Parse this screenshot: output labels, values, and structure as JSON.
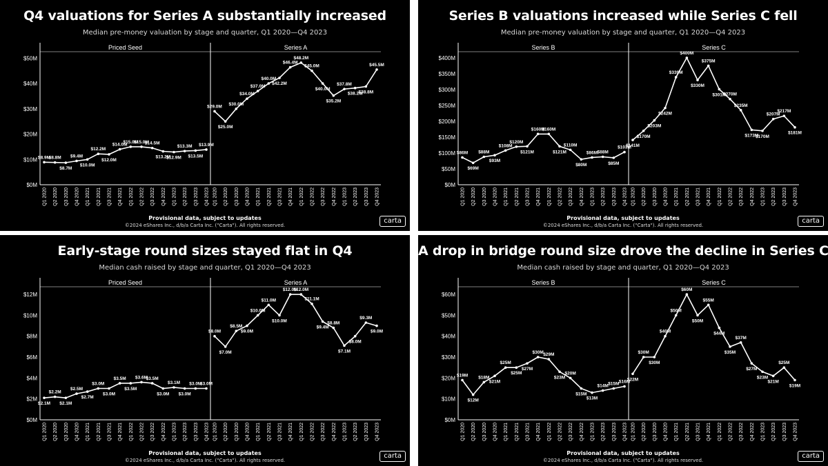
{
  "footer": {
    "provisional": "Provisional data, subject to updates",
    "copyright": "©2024 eShares Inc., d/b/a Carta Inc. (\"Carta\"). All rights reserved.",
    "logo": "carta"
  },
  "chart_data": [
    {
      "type": "line",
      "title": "Q4 valuations for Series A substantially increased",
      "subtitle": "Median pre-money valuation by stage and quarter, Q1 2020—Q4 2023",
      "yticks": [
        "$0M",
        "$10M",
        "$20M",
        "$30M",
        "$40M",
        "$50M"
      ],
      "ylim": [
        0,
        52
      ],
      "grid": false,
      "facets": [
        {
          "name": "Priced Seed",
          "categories": [
            "Q1 2020",
            "Q2 2020",
            "Q3 2020",
            "Q4 2020",
            "Q1 2021",
            "Q2 2021",
            "Q3 2021",
            "Q4 2021",
            "Q1 2022",
            "Q2 2022",
            "Q3 2022",
            "Q4 2022",
            "Q1 2023",
            "Q2 2023",
            "Q3 2023",
            "Q4 2023"
          ],
          "values": [
            8.9,
            8.8,
            8.7,
            9.4,
            10.0,
            12.2,
            12.0,
            14.0,
            15.0,
            15.0,
            14.5,
            13.2,
            12.9,
            13.3,
            13.5,
            13.9
          ],
          "labels": [
            "$8.9M",
            "$8.8M",
            "$8.7M",
            "$9.4M",
            "$10.0M",
            "$12.2M",
            "$12.0M",
            "$14.0M",
            "$15.0M",
            "$15.0M",
            "$14.5M",
            "$13.2M",
            "$12.9M",
            "$13.3M",
            "$13.5M",
            "$13.9M"
          ]
        },
        {
          "name": "Series A",
          "categories": [
            "Q1 2020",
            "Q2 2020",
            "Q3 2020",
            "Q4 2020",
            "Q1 2021",
            "Q2 2021",
            "Q3 2021",
            "Q4 2021",
            "Q1 2022",
            "Q2 2022",
            "Q3 2022",
            "Q4 2022",
            "Q1 2023",
            "Q2 2023",
            "Q3 2023",
            "Q4 2023"
          ],
          "values": [
            29.0,
            25.0,
            30.0,
            34.0,
            37.0,
            40.0,
            42.2,
            46.4,
            48.2,
            45.0,
            40.0,
            35.2,
            37.8,
            38.2,
            38.8,
            45.5
          ],
          "labels": [
            "$29.0M",
            "$25.0M",
            "$30.0M",
            "$34.0M",
            "$37.0M",
            "$40.0M",
            "$42.2M",
            "$46.4M",
            "$48.2M",
            "$45.0M",
            "$40.0M",
            "$35.2M",
            "$37.8M",
            "$38.2M",
            "$38.8M",
            "$45.5M"
          ]
        }
      ]
    },
    {
      "type": "line",
      "title": "Series B valuations increased while Series C fell",
      "subtitle": "Median pre-money valuation by stage and quarter, Q1 2020—Q4 2023",
      "yticks": [
        "$0M",
        "$50M",
        "$100M",
        "$150M",
        "$200M",
        "$250M",
        "$300M",
        "$350M",
        "$400M"
      ],
      "ylim": [
        0,
        415
      ],
      "grid": false,
      "facets": [
        {
          "name": "Series B",
          "categories": [
            "Q1 2020",
            "Q2 2020",
            "Q3 2020",
            "Q4 2020",
            "Q1 2021",
            "Q2 2021",
            "Q3 2021",
            "Q4 2021",
            "Q1 2022",
            "Q2 2022",
            "Q3 2022",
            "Q4 2022",
            "Q1 2023",
            "Q2 2023",
            "Q3 2023",
            "Q4 2023"
          ],
          "values": [
            86,
            69,
            88,
            93,
            108,
            120,
            121,
            160,
            160,
            121,
            110,
            80,
            86,
            88,
            85,
            103
          ],
          "labels": [
            "$86M",
            "$69M",
            "$88M",
            "$93M",
            "$108M",
            "$120M",
            "$121M",
            "$160M",
            "$160M",
            "$121M",
            "$110M",
            "$80M",
            "$86M",
            "$88M",
            "$85M",
            "$103M"
          ]
        },
        {
          "name": "Series C",
          "categories": [
            "Q1 2020",
            "Q2 2020",
            "Q3 2020",
            "Q4 2020",
            "Q1 2021",
            "Q2 2021",
            "Q3 2021",
            "Q4 2021",
            "Q1 2022",
            "Q2 2022",
            "Q3 2022",
            "Q4 2022",
            "Q1 2023",
            "Q2 2023",
            "Q3 2023",
            "Q4 2023"
          ],
          "values": [
            141,
            170,
            203,
            242,
            339,
            400,
            330,
            375,
            301,
            270,
            235,
            173,
            170,
            207,
            217,
            181
          ],
          "labels": [
            "$141M",
            "$170M",
            "$203M",
            "$242M",
            "$339M",
            "$400M",
            "$330M",
            "$375M",
            "$301M",
            "$270M",
            "$235M",
            "$173M",
            "$170M",
            "$207M",
            "$217M",
            "$181M"
          ]
        }
      ]
    },
    {
      "type": "line",
      "title": "Early-stage round sizes stayed flat in Q4",
      "subtitle": "Median cash raised by stage and quarter, Q1 2020—Q4 2023",
      "yticks": [
        "$0M",
        "$2M",
        "$4M",
        "$6M",
        "$8M",
        "$10M",
        "$12M"
      ],
      "ylim": [
        0,
        12.6
      ],
      "grid": false,
      "facets": [
        {
          "name": "Priced Seed",
          "categories": [
            "Q1 2020",
            "Q2 2020",
            "Q3 2020",
            "Q4 2020",
            "Q1 2021",
            "Q2 2021",
            "Q3 2021",
            "Q4 2021",
            "Q1 2022",
            "Q2 2022",
            "Q3 2022",
            "Q4 2022",
            "Q1 2023",
            "Q2 2023",
            "Q3 2023",
            "Q4 2023"
          ],
          "values": [
            2.1,
            2.2,
            2.1,
            2.5,
            2.7,
            3.0,
            3.0,
            3.5,
            3.5,
            3.6,
            3.5,
            3.0,
            3.1,
            3.0,
            3.0,
            3.0
          ],
          "labels": [
            "$2.1M",
            "$2.2M",
            "$2.1M",
            "$2.5M",
            "$2.7M",
            "$3.0M",
            "$3.0M",
            "$3.5M",
            "$3.5M",
            "$3.6M",
            "$3.5M",
            "$3.0M",
            "$3.1M",
            "$3.0M",
            "$3.0M",
            "$3.0M"
          ]
        },
        {
          "name": "Series A",
          "categories": [
            "Q1 2020",
            "Q2 2020",
            "Q3 2020",
            "Q4 2020",
            "Q1 2021",
            "Q2 2021",
            "Q3 2021",
            "Q4 2021",
            "Q1 2022",
            "Q2 2022",
            "Q3 2022",
            "Q4 2022",
            "Q1 2023",
            "Q2 2023",
            "Q3 2023",
            "Q4 2023"
          ],
          "values": [
            8.0,
            7.0,
            8.5,
            9.0,
            10.0,
            11.0,
            10.0,
            12.0,
            12.0,
            11.1,
            9.4,
            8.8,
            7.1,
            8.0,
            9.3,
            9.0
          ],
          "labels": [
            "$8.0M",
            "$7.0M",
            "$8.5M",
            "$9.0M",
            "$10.0M",
            "$11.0M",
            "$10.0M",
            "$12.0M",
            "$12.0M",
            "$11.1M",
            "$9.4M",
            "$8.8M",
            "$7.1M",
            "$8.0M",
            "$9.3M",
            "$9.0M"
          ]
        }
      ]
    },
    {
      "type": "line",
      "title": "A drop in bridge round size drove the decline in Series C",
      "subtitle": "Median cash raised by stage and quarter, Q1 2020—Q4 2023",
      "yticks": [
        "$0M",
        "$10M",
        "$20M",
        "$30M",
        "$40M",
        "$50M",
        "$60M"
      ],
      "ylim": [
        0,
        63
      ],
      "grid": false,
      "facets": [
        {
          "name": "Series B",
          "categories": [
            "Q1 2020",
            "Q2 2020",
            "Q3 2020",
            "Q4 2020",
            "Q1 2021",
            "Q2 2021",
            "Q3 2021",
            "Q4 2021",
            "Q1 2022",
            "Q2 2022",
            "Q3 2022",
            "Q4 2022",
            "Q1 2023",
            "Q2 2023",
            "Q3 2023",
            "Q4 2023"
          ],
          "values": [
            19,
            12,
            18,
            21,
            25,
            25,
            27,
            30,
            29,
            23,
            20,
            15,
            13,
            14,
            15,
            16
          ],
          "labels": [
            "$19M",
            "$12M",
            "$18M",
            "$21M",
            "$25M",
            "$25M",
            "$27M",
            "$30M",
            "$29M",
            "$23M",
            "$20M",
            "$15M",
            "$13M",
            "$14M",
            "$15M",
            "$16M"
          ]
        },
        {
          "name": "Series C",
          "categories": [
            "Q1 2020",
            "Q2 2020",
            "Q3 2020",
            "Q4 2020",
            "Q1 2021",
            "Q2 2021",
            "Q3 2021",
            "Q4 2021",
            "Q1 2022",
            "Q2 2022",
            "Q3 2022",
            "Q4 2022",
            "Q1 2023",
            "Q2 2023",
            "Q3 2023",
            "Q4 2023"
          ],
          "values": [
            22,
            30,
            30,
            40,
            50,
            60,
            50,
            55,
            44,
            35,
            37,
            27,
            23,
            21,
            25,
            19
          ],
          "labels": [
            "$22M",
            "$30M",
            "$30M",
            "$40M",
            "$50M",
            "$60M",
            "$50M",
            "$55M",
            "$44M",
            "$35M",
            "$37M",
            "$27M",
            "$23M",
            "$21M",
            "$25M",
            "$19M"
          ]
        }
      ]
    }
  ]
}
